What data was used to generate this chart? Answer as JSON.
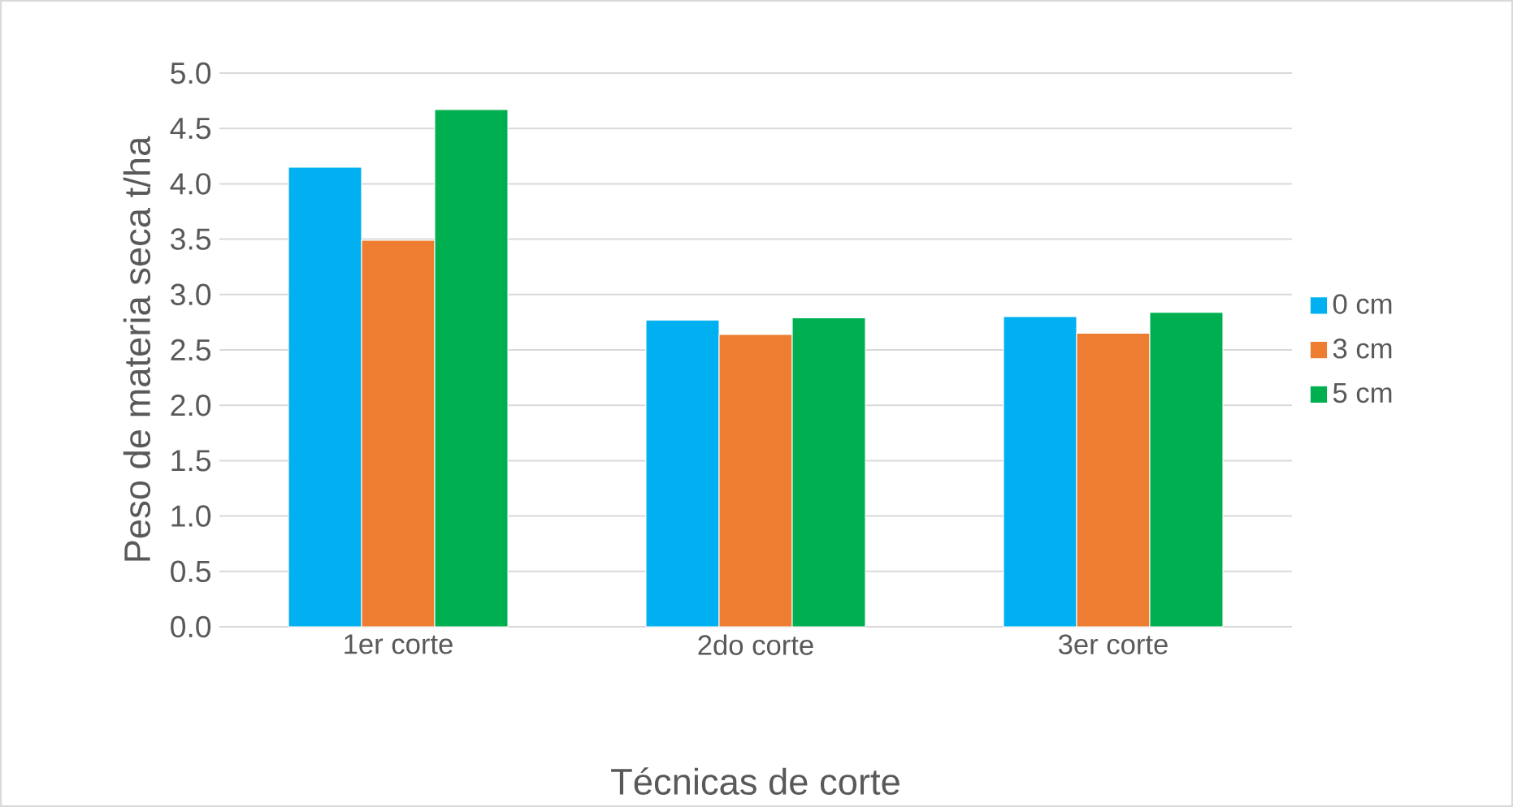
{
  "chart_data": {
    "type": "bar",
    "xlabel": "Técnicas de corte",
    "ylabel": "Peso de materia seca t/ha",
    "categories": [
      "1er corte",
      "2do corte",
      "3er corte"
    ],
    "series": [
      {
        "name": "0 cm",
        "color": "#00b0f0",
        "values": [
          4.15,
          2.77,
          2.8
        ]
      },
      {
        "name": "3 cm",
        "color": "#ed7d31",
        "values": [
          3.49,
          2.64,
          2.65
        ]
      },
      {
        "name": "5 cm",
        "color": "#00b050",
        "values": [
          4.67,
          2.79,
          2.84
        ]
      }
    ],
    "ylim": [
      0,
      5
    ],
    "yticks": [
      {
        "value": 0,
        "label": "0.0"
      },
      {
        "value": 0.5,
        "label": "0.5"
      },
      {
        "value": 1,
        "label": "1.0"
      },
      {
        "value": 1.5,
        "label": "1.5"
      },
      {
        "value": 2,
        "label": "2.0"
      },
      {
        "value": 2.5,
        "label": "2.5"
      },
      {
        "value": 3,
        "label": "3.0"
      },
      {
        "value": 3.5,
        "label": "3.5"
      },
      {
        "value": 4,
        "label": "4.0"
      },
      {
        "value": 4.5,
        "label": "4.5"
      },
      {
        "value": 5,
        "label": "5.0"
      }
    ],
    "grid": "y",
    "legend": "right"
  }
}
